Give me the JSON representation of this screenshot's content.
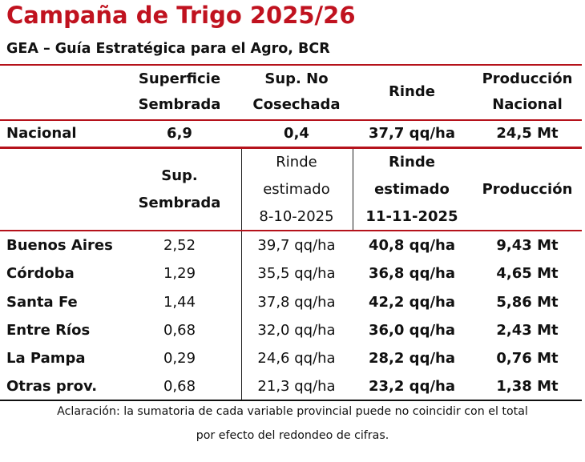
{
  "title": "Campaña de Trigo 2025/26",
  "subtitle": "GEA – Guía Estratégica para el Agro, BCR",
  "national_header": {
    "col1": [
      "Superficie",
      "Sembrada"
    ],
    "col2": [
      "Sup. No",
      "Cosechada"
    ],
    "col3": "Rinde",
    "col4": [
      "Producción",
      "Nacional"
    ]
  },
  "national_row": {
    "label": "Nacional",
    "superficie": "6,9",
    "sup_no_cosechada": "0,4",
    "rinde": "37,7 qq/ha",
    "produccion": "24,5 Mt"
  },
  "province_header": {
    "col1": [
      "Sup.",
      "Sembrada"
    ],
    "col2": [
      "Rinde",
      "estimado",
      "8-10-2025"
    ],
    "col3": [
      "Rinde",
      "estimado",
      "11-11-2025"
    ],
    "col4": "Producción"
  },
  "rows": [
    {
      "province": "Buenos Aires",
      "sup": "2,52",
      "rinde_prev": "39,7 qq/ha",
      "rinde_new": "40,8 qq/ha",
      "prod": "9,43 Mt"
    },
    {
      "province": "Córdoba",
      "sup": "1,29",
      "rinde_prev": "35,5 qq/ha",
      "rinde_new": "36,8 qq/ha",
      "prod": "4,65 Mt"
    },
    {
      "province": "Santa Fe",
      "sup": "1,44",
      "rinde_prev": "37,8 qq/ha",
      "rinde_new": "42,2 qq/ha",
      "prod": "5,86 Mt"
    },
    {
      "province": "Entre Ríos",
      "sup": "0,68",
      "rinde_prev": "32,0 qq/ha",
      "rinde_new": "36,0 qq/ha",
      "prod": "2,43 Mt"
    },
    {
      "province": "La Pampa",
      "sup": "0,29",
      "rinde_prev": "24,6 qq/ha",
      "rinde_new": "28,2 qq/ha",
      "prod": "0,76 Mt"
    },
    {
      "province": "Otras prov.",
      "sup": "0,68",
      "rinde_prev": "21,3 qq/ha",
      "rinde_new": "23,2 qq/ha",
      "prod": "1,38 Mt"
    }
  ],
  "note": [
    "Aclaración: la sumatoria de cada variable provincial puede no coincidir con el total",
    "por efecto del redondeo de cifras."
  ],
  "colors": {
    "accent_red": "#c0121f",
    "rule_red": "#b5121b",
    "text": "#111111"
  }
}
